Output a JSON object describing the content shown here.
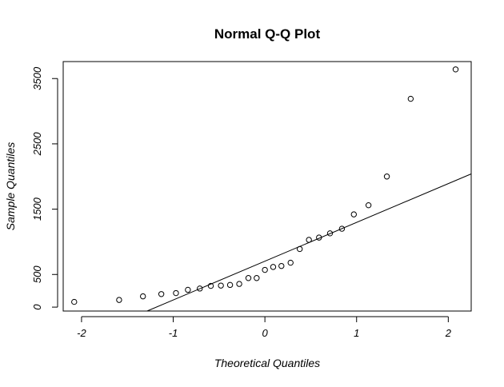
{
  "chart_data": {
    "type": "scatter",
    "title": "Normal Q-Q Plot",
    "xlabel": "Theoretical Quantiles",
    "ylabel": "Sample Quantiles",
    "xlim": [
      -2.2,
      2.25
    ],
    "ylim": [
      -60,
      3760
    ],
    "xticks": [
      -2,
      -1,
      0,
      1,
      2
    ],
    "xtick_labels": [
      "-2",
      "-1",
      "0",
      "1",
      "2"
    ],
    "yticks": [
      0,
      500,
      1500,
      2500,
      3500
    ],
    "ytick_labels": [
      "0",
      "500",
      "1500",
      "2500",
      "3500"
    ],
    "grid": false,
    "points": [
      {
        "x": -2.08,
        "y": 80
      },
      {
        "x": -1.59,
        "y": 110
      },
      {
        "x": -1.33,
        "y": 165
      },
      {
        "x": -1.13,
        "y": 200
      },
      {
        "x": -0.97,
        "y": 215
      },
      {
        "x": -0.84,
        "y": 265
      },
      {
        "x": -0.71,
        "y": 285
      },
      {
        "x": -0.59,
        "y": 325
      },
      {
        "x": -0.48,
        "y": 330
      },
      {
        "x": -0.38,
        "y": 340
      },
      {
        "x": -0.28,
        "y": 355
      },
      {
        "x": -0.18,
        "y": 445
      },
      {
        "x": -0.09,
        "y": 445
      },
      {
        "x": 0.0,
        "y": 570
      },
      {
        "x": 0.09,
        "y": 615
      },
      {
        "x": 0.18,
        "y": 630
      },
      {
        "x": 0.28,
        "y": 680
      },
      {
        "x": 0.38,
        "y": 890
      },
      {
        "x": 0.48,
        "y": 1030
      },
      {
        "x": 0.59,
        "y": 1065
      },
      {
        "x": 0.71,
        "y": 1130
      },
      {
        "x": 0.84,
        "y": 1200
      },
      {
        "x": 0.97,
        "y": 1420
      },
      {
        "x": 1.13,
        "y": 1560
      },
      {
        "x": 1.33,
        "y": 2000
      },
      {
        "x": 1.59,
        "y": 3190
      },
      {
        "x": 2.08,
        "y": 3640
      }
    ],
    "reference_line": {
      "x1": -1.285,
      "y1": -60,
      "x2": 2.25,
      "y2": 2040
    }
  }
}
